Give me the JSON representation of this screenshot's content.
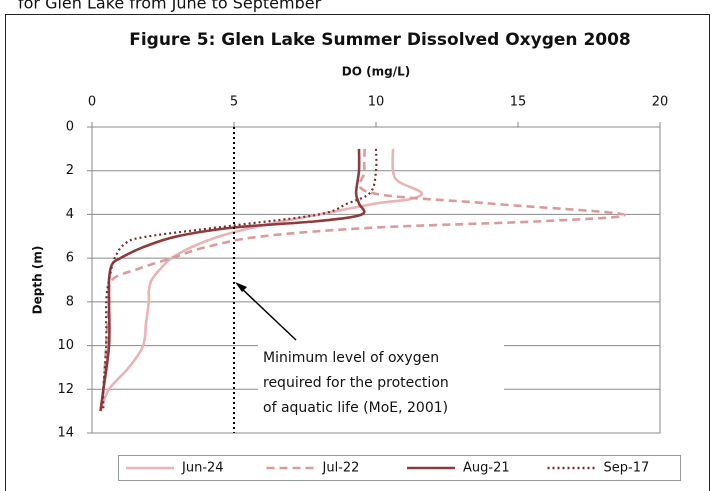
{
  "caption_fragment": "for Glen Lake from June to September",
  "chart_data": {
    "type": "line",
    "title": "Figure 5: Glen Lake Summer Dissolved Oxygen 2008",
    "x_label": "DO (mg/L)",
    "y_label": "Depth (m)",
    "xlim": [
      0,
      20
    ],
    "xticks": [
      0,
      5,
      10,
      15,
      20
    ],
    "ylim": [
      0,
      14
    ],
    "yticks": [
      0,
      2,
      4,
      6,
      8,
      10,
      12,
      14
    ],
    "y_inverted": true,
    "x_axis_position": "top",
    "grid": true,
    "legend": "bottom",
    "threshold": {
      "value": 5,
      "label_lines": [
        "Minimum level of oxygen",
        "required for the protection",
        "of aquatic life (MoE, 2001)"
      ]
    },
    "series": [
      {
        "name": "Jun-24",
        "color": "#eab3b6",
        "dash": "solid",
        "y": [
          1,
          2,
          2.5,
          3,
          3.3,
          3.5,
          4,
          4.5,
          5,
          5.5,
          6,
          6.5,
          7,
          7.5,
          8,
          9,
          10,
          11,
          12,
          13
        ],
        "values": [
          10.6,
          10.6,
          10.8,
          11.6,
          11.2,
          10,
          8,
          6,
          4.5,
          3.5,
          2.8,
          2.4,
          2.1,
          2,
          2,
          1.9,
          1.8,
          1.3,
          0.6,
          0.3
        ]
      },
      {
        "name": "Jul-22",
        "color": "#dc9a9c",
        "dash": "dashed",
        "y": [
          1,
          2,
          3,
          3.5,
          4,
          4.3,
          4.6,
          5,
          5.5,
          6,
          6.5,
          7,
          8,
          10,
          12,
          13
        ],
        "values": [
          9.6,
          9.6,
          9.8,
          14,
          18.7,
          16,
          10,
          6,
          4,
          2.8,
          1.6,
          0.7,
          0.6,
          0.5,
          0.4,
          0.3
        ]
      },
      {
        "name": "Aug-21",
        "color": "#8e3b3e",
        "dash": "solid",
        "y": [
          1,
          2,
          3,
          3.5,
          4,
          4.3,
          4.6,
          5,
          5.5,
          6,
          6.3,
          7,
          8,
          10,
          12,
          13
        ],
        "values": [
          9.4,
          9.4,
          9.3,
          9.4,
          9.5,
          8,
          5,
          3,
          1.8,
          1,
          0.7,
          0.6,
          0.6,
          0.6,
          0.4,
          0.3
        ]
      },
      {
        "name": "Sep-17",
        "color": "#7a2c2e",
        "dash": "dotted",
        "y": [
          1,
          2,
          3,
          3.5,
          4,
          4.5,
          5,
          5.3,
          6,
          7,
          8,
          10,
          12,
          13
        ],
        "values": [
          10,
          10,
          9.8,
          9,
          8,
          5,
          2,
          1.2,
          0.8,
          0.6,
          0.5,
          0.5,
          0.4,
          0.4
        ]
      }
    ]
  }
}
